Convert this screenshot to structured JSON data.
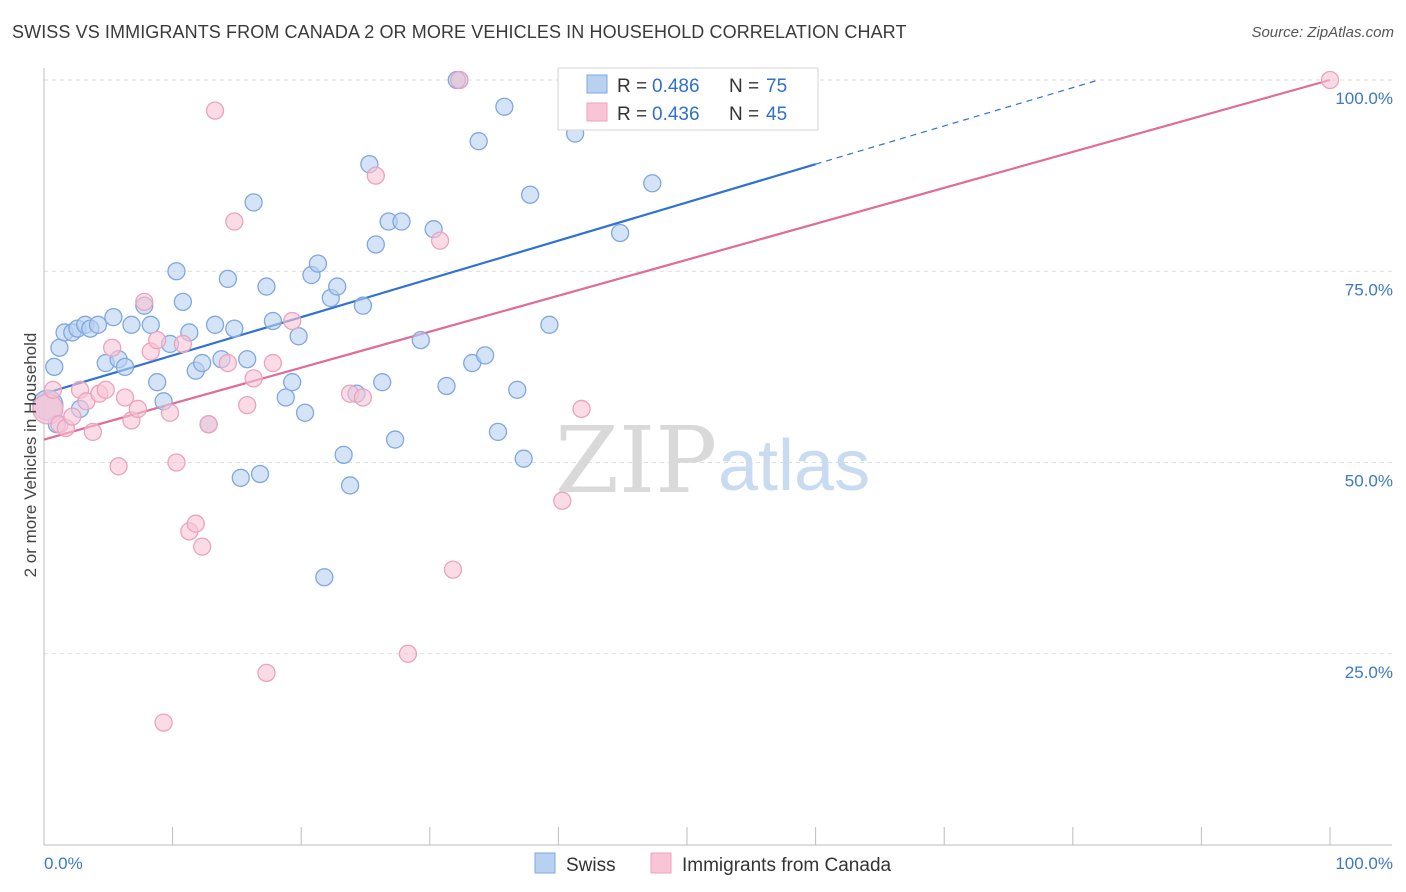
{
  "header": {
    "title": "SWISS VS IMMIGRANTS FROM CANADA 2 OR MORE VEHICLES IN HOUSEHOLD CORRELATION CHART",
    "source": "Source: ZipAtlas.com"
  },
  "watermark": {
    "zip": "ZIP",
    "atlas": "atlas"
  },
  "chart_data": {
    "type": "scatter",
    "ylabel": "2 or more Vehicles in Household",
    "xlim": [
      0,
      100
    ],
    "ylim": [
      0,
      100
    ],
    "x_tick_labels": [
      "0.0%",
      "100.0%"
    ],
    "y_ticks": [
      25,
      50,
      75,
      100
    ],
    "y_tick_labels": [
      "25.0%",
      "50.0%",
      "75.0%",
      "100.0%"
    ],
    "grid": true,
    "legend_stats": [
      {
        "r_label": "R = ",
        "r_value": "0.486",
        "n_label": "N = ",
        "n_value": "75"
      },
      {
        "r_label": "R = ",
        "r_value": "0.436",
        "n_label": "N = ",
        "n_value": "45"
      }
    ],
    "legend_position": "bottom",
    "series": [
      {
        "name": "Swiss",
        "color": "#7fa8e0",
        "fill": "#b9d1f0",
        "line_color": "#2f72d4",
        "trend": {
          "x": [
            0,
            60,
            82
          ],
          "y": [
            59,
            89,
            100
          ]
        },
        "points": [
          [
            0.3,
            57.5
          ],
          [
            0.8,
            62.5
          ],
          [
            1.2,
            65
          ],
          [
            1.6,
            67
          ],
          [
            2.2,
            67
          ],
          [
            2.6,
            67.5
          ],
          [
            3.2,
            68
          ],
          [
            3.6,
            67.5
          ],
          [
            4.2,
            68
          ],
          [
            4.8,
            63
          ],
          [
            5.4,
            69
          ],
          [
            5.8,
            63.5
          ],
          [
            6.3,
            62.5
          ],
          [
            6.8,
            68
          ],
          [
            7.8,
            70.5
          ],
          [
            8.3,
            68
          ],
          [
            8.8,
            60.5
          ],
          [
            9.3,
            58
          ],
          [
            9.8,
            65.5
          ],
          [
            10.3,
            75
          ],
          [
            10.8,
            71
          ],
          [
            11.3,
            67
          ],
          [
            11.8,
            62
          ],
          [
            12.3,
            63
          ],
          [
            12.8,
            55
          ],
          [
            13.3,
            68
          ],
          [
            13.8,
            63.5
          ],
          [
            14.3,
            74
          ],
          [
            14.8,
            67.5
          ],
          [
            15.3,
            48
          ],
          [
            15.8,
            63.5
          ],
          [
            16.3,
            84
          ],
          [
            16.8,
            48.5
          ],
          [
            17.3,
            73
          ],
          [
            17.8,
            68.5
          ],
          [
            18.8,
            58.5
          ],
          [
            19.3,
            60.5
          ],
          [
            19.8,
            66.5
          ],
          [
            20.3,
            56.5
          ],
          [
            20.8,
            74.5
          ],
          [
            21.3,
            76
          ],
          [
            21.8,
            35
          ],
          [
            22.3,
            71.5
          ],
          [
            22.8,
            73
          ],
          [
            23.3,
            51
          ],
          [
            23.8,
            47
          ],
          [
            24.3,
            59
          ],
          [
            24.8,
            70.5
          ],
          [
            25.3,
            89
          ],
          [
            25.8,
            78.5
          ],
          [
            26.3,
            60.5
          ],
          [
            26.8,
            81.5
          ],
          [
            27.3,
            53
          ],
          [
            27.8,
            81.5
          ],
          [
            29.3,
            66
          ],
          [
            30.3,
            80.5
          ],
          [
            31.3,
            60
          ],
          [
            32.3,
            100
          ],
          [
            33.3,
            63
          ],
          [
            33.8,
            92
          ],
          [
            34.3,
            64
          ],
          [
            35.3,
            54
          ],
          [
            35.8,
            96.5
          ],
          [
            36.8,
            59.5
          ],
          [
            37.3,
            50.5
          ],
          [
            37.8,
            85
          ],
          [
            39.3,
            68
          ],
          [
            41.3,
            93
          ],
          [
            42.3,
            100
          ],
          [
            44.8,
            80
          ],
          [
            47.3,
            86.5
          ],
          [
            50.3,
            100
          ],
          [
            32.1,
            100
          ],
          [
            1.0,
            55
          ],
          [
            2.8,
            57
          ]
        ]
      },
      {
        "name": "Immigrants from Canada",
        "color": "#eba3bd",
        "fill": "#f8c4d6",
        "line_color": "#e06c97",
        "trend": {
          "x": [
            0,
            100
          ],
          "y": [
            53,
            100
          ]
        },
        "points": [
          [
            0.3,
            57
          ],
          [
            0.7,
            59.5
          ],
          [
            1.2,
            55
          ],
          [
            1.7,
            54.5
          ],
          [
            2.2,
            56
          ],
          [
            2.8,
            59.5
          ],
          [
            3.3,
            58
          ],
          [
            3.8,
            54
          ],
          [
            4.3,
            59
          ],
          [
            4.8,
            59.5
          ],
          [
            5.3,
            65
          ],
          [
            5.8,
            49.5
          ],
          [
            6.3,
            58.5
          ],
          [
            6.8,
            55.5
          ],
          [
            7.3,
            57
          ],
          [
            7.8,
            71
          ],
          [
            8.3,
            64.5
          ],
          [
            8.8,
            66
          ],
          [
            9.3,
            16
          ],
          [
            9.8,
            56.5
          ],
          [
            10.3,
            50
          ],
          [
            10.8,
            65.5
          ],
          [
            11.3,
            41
          ],
          [
            11.8,
            42
          ],
          [
            12.3,
            39
          ],
          [
            12.8,
            55
          ],
          [
            13.3,
            96
          ],
          [
            14.3,
            63
          ],
          [
            14.8,
            81.5
          ],
          [
            15.8,
            57.5
          ],
          [
            16.3,
            61
          ],
          [
            17.3,
            22.5
          ],
          [
            17.8,
            63
          ],
          [
            19.3,
            68.5
          ],
          [
            23.8,
            59
          ],
          [
            24.8,
            58.5
          ],
          [
            25.8,
            87.5
          ],
          [
            28.3,
            25
          ],
          [
            30.8,
            79
          ],
          [
            31.8,
            36
          ],
          [
            32.3,
            100
          ],
          [
            40.3,
            45
          ],
          [
            41.8,
            57
          ],
          [
            47.3,
            100
          ],
          [
            100,
            100
          ]
        ]
      }
    ]
  }
}
